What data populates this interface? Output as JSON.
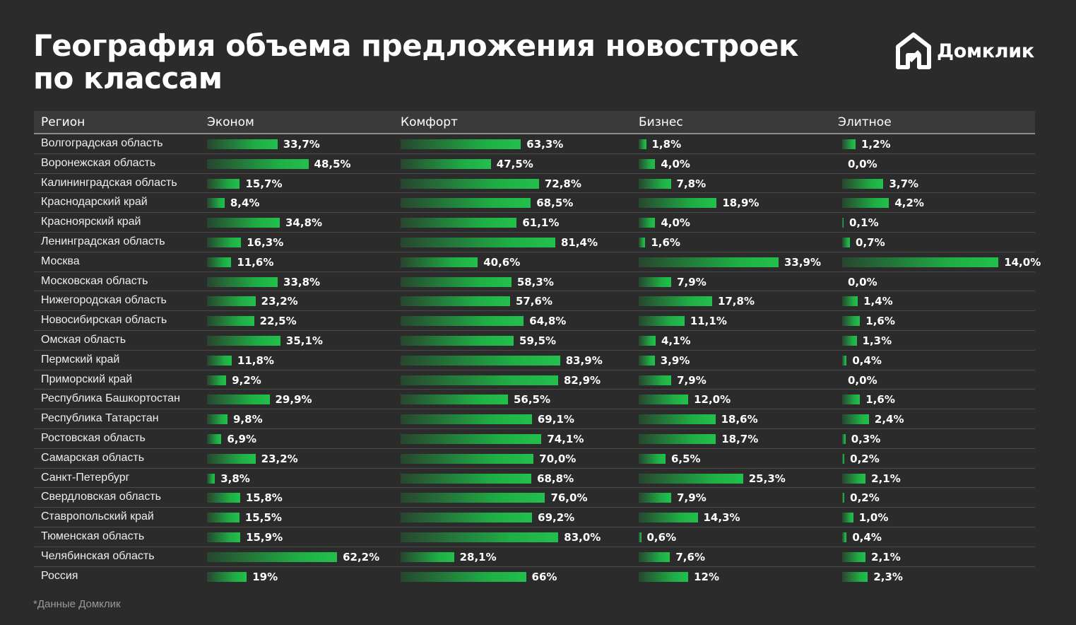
{
  "title": "География объема предложения новостроек по классам",
  "logo": {
    "text": "Домклик",
    "icon": "house-logo-icon"
  },
  "footnote": "*Данные Домклик",
  "colors": {
    "background": "#2b2b2b",
    "bar": "#22c04c",
    "header": "#3a3a3a"
  },
  "chart_data": {
    "type": "bar",
    "columns": [
      "Регион",
      "Эконом",
      "Комфорт",
      "Бизнес",
      "Элитное"
    ],
    "categories": [
      "Волгоградская область",
      "Воронежская область",
      "Калининградская область",
      "Краснодарский край",
      "Красноярский край",
      "Ленинградская область",
      "Москва",
      "Московская область",
      "Нижегородская область",
      "Новосибирская область",
      "Омская область",
      "Пермский край",
      "Приморский край",
      "Республика Башкортостан",
      "Республика Татарстан",
      "Ростовская область",
      "Самарская область",
      "Санкт-Петербург",
      "Свердловская область",
      "Ставропольский край",
      "Тюменская область",
      "Челябинская область",
      "Россия"
    ],
    "series": [
      {
        "name": "Эконом",
        "values": [
          33.7,
          48.5,
          15.7,
          8.4,
          34.8,
          16.3,
          11.6,
          33.8,
          23.2,
          22.5,
          35.1,
          11.8,
          9.2,
          29.9,
          9.8,
          6.9,
          23.2,
          3.8,
          15.8,
          15.5,
          15.9,
          62.2,
          19
        ],
        "labels": [
          "33,7%",
          "48,5%",
          "15,7%",
          "8,4%",
          "34,8%",
          "16,3%",
          "11,6%",
          "33,8%",
          "23,2%",
          "22,5%",
          "35,1%",
          "11,8%",
          "9,2%",
          "29,9%",
          "9,8%",
          "6,9%",
          "23,2%",
          "3,8%",
          "15,8%",
          "15,5%",
          "15,9%",
          "62,2%",
          "19%"
        ]
      },
      {
        "name": "Комфорт",
        "values": [
          63.3,
          47.5,
          72.8,
          68.5,
          61.1,
          81.4,
          40.6,
          58.3,
          57.6,
          64.8,
          59.5,
          83.9,
          82.9,
          56.5,
          69.1,
          74.1,
          70.0,
          68.8,
          76.0,
          69.2,
          83.0,
          28.1,
          66
        ],
        "labels": [
          "63,3%",
          "47,5%",
          "72,8%",
          "68,5%",
          "61,1%",
          "81,4%",
          "40,6%",
          "58,3%",
          "57,6%",
          "64,8%",
          "59,5%",
          "83,9%",
          "82,9%",
          "56,5%",
          "69,1%",
          "74,1%",
          "70,0%",
          "68,8%",
          "76,0%",
          "69,2%",
          "83,0%",
          "28,1%",
          "66%"
        ]
      },
      {
        "name": "Бизнес",
        "values": [
          1.8,
          4.0,
          7.8,
          18.9,
          4.0,
          1.6,
          33.9,
          7.9,
          17.8,
          11.1,
          4.1,
          3.9,
          7.9,
          12.0,
          18.6,
          18.7,
          6.5,
          25.3,
          7.9,
          14.3,
          0.6,
          7.6,
          12
        ],
        "labels": [
          "1,8%",
          "4,0%",
          "7,8%",
          "18,9%",
          "4,0%",
          "1,6%",
          "33,9%",
          "7,9%",
          "17,8%",
          "11,1%",
          "4,1%",
          "3,9%",
          "7,9%",
          "12,0%",
          "18,6%",
          "18,7%",
          "6,5%",
          "25,3%",
          "7,9%",
          "14,3%",
          "0,6%",
          "7,6%",
          "12%"
        ]
      },
      {
        "name": "Элитное",
        "values": [
          1.2,
          0.0,
          3.7,
          4.2,
          0.1,
          0.7,
          14.0,
          0.0,
          1.4,
          1.6,
          1.3,
          0.4,
          0.0,
          1.6,
          2.4,
          0.3,
          0.2,
          2.1,
          0.2,
          1.0,
          0.4,
          2.1,
          2.3
        ],
        "labels": [
          "1,2%",
          "0,0%",
          "3,7%",
          "4,2%",
          "0,1%",
          "0,7%",
          "14,0%",
          "0,0%",
          "1,4%",
          "1,6%",
          "1,3%",
          "0,4%",
          "0,0%",
          "1,6%",
          "2,4%",
          "0,3%",
          "0,2%",
          "2,1%",
          "0,2%",
          "1,0%",
          "0,4%",
          "2,1%",
          "2,3%"
        ]
      }
    ]
  }
}
